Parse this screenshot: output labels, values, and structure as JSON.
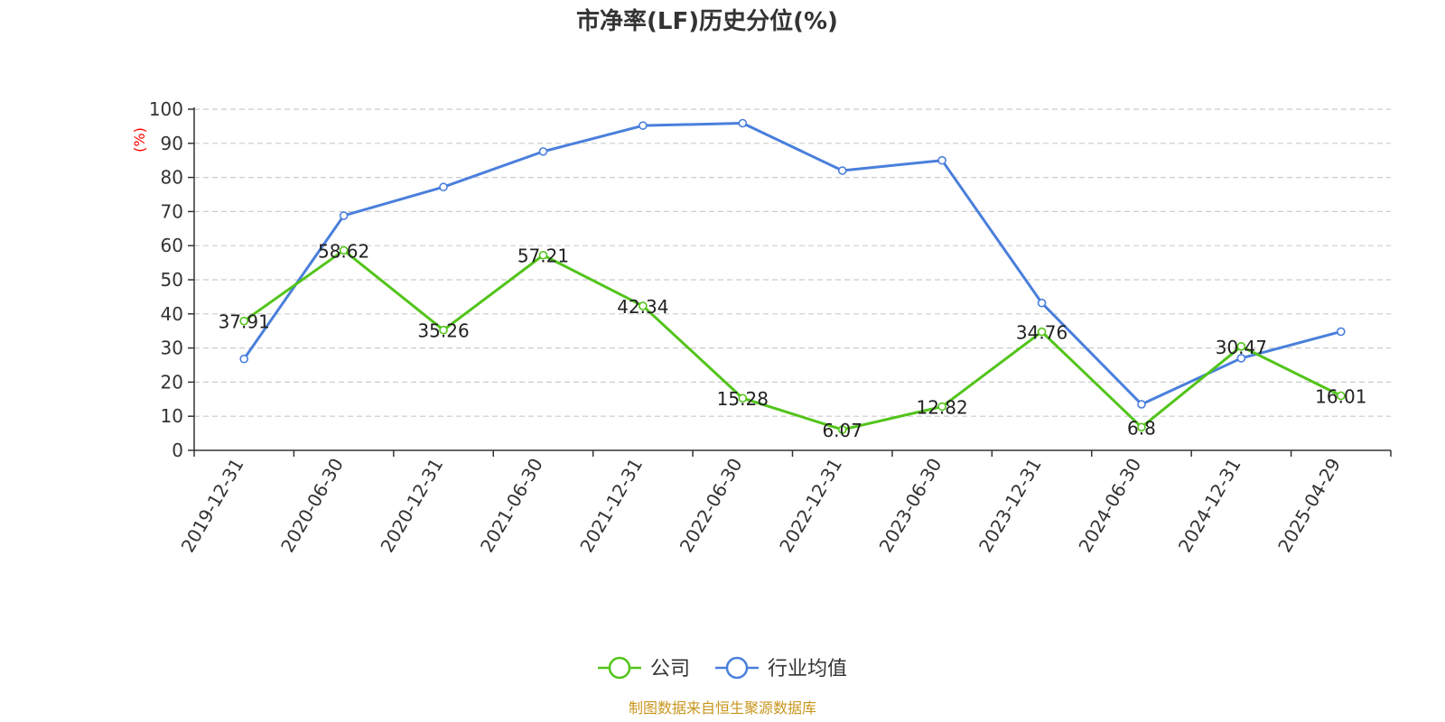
{
  "chart_data": {
    "type": "line",
    "title": "市净率(LF)历史分位(%)",
    "ylabel": "(%)",
    "ylabel_color": "#ff0000",
    "ylim": [
      0,
      100
    ],
    "yticks": [
      0,
      10,
      20,
      30,
      40,
      50,
      60,
      70,
      80,
      90,
      100
    ],
    "grid": true,
    "legend_position": "bottom",
    "categories": [
      "2019-12-31",
      "2020-06-30",
      "2020-12-31",
      "2021-06-30",
      "2021-12-31",
      "2022-06-30",
      "2022-12-31",
      "2023-06-30",
      "2023-12-31",
      "2024-06-30",
      "2024-12-31",
      "2025-04-29"
    ],
    "series": [
      {
        "name": "公司",
        "color": "#52c41a",
        "values": [
          37.91,
          58.62,
          35.26,
          57.21,
          42.34,
          15.28,
          6.07,
          12.82,
          34.76,
          6.8,
          30.47,
          16.01
        ],
        "labels": [
          "37.91",
          "58.62",
          "35.26",
          "57.21",
          "42.34",
          "15.28",
          "6.07",
          "12.82",
          "34.76",
          "6.8",
          "30.47",
          "16.01"
        ]
      },
      {
        "name": "行业均值",
        "color": "#4a7fdc",
        "values": [
          26.8,
          68.8,
          77.2,
          87.6,
          95.2,
          95.9,
          82.0,
          85.0,
          43.2,
          13.5,
          27.0,
          34.8
        ]
      }
    ],
    "source": "制图数据来自恒生聚源数据库",
    "source_color": "#c8961e"
  }
}
